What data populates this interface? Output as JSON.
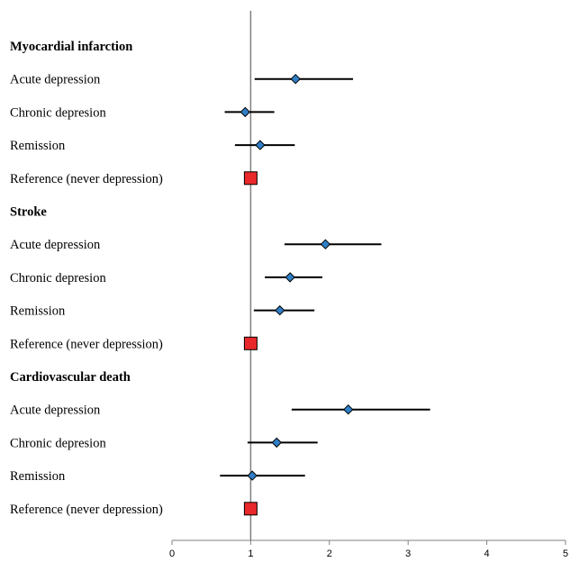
{
  "chart_data": {
    "type": "forest",
    "title": "",
    "xlabel": "",
    "ylabel": "",
    "xlim": [
      0,
      5
    ],
    "xticks": [
      0,
      1,
      2,
      3,
      4,
      5
    ],
    "reference_value": 1,
    "colors": {
      "point": "#2f7fc6",
      "reference": "#e8282a",
      "line": "#000000",
      "axis": "#808080"
    },
    "rows": [
      {
        "label": "Myocardial infarction",
        "kind": "group"
      },
      {
        "label": "Acute depression",
        "kind": "estimate",
        "estimate": 1.57,
        "ci": [
          1.05,
          2.3
        ]
      },
      {
        "label": "Chronic depresion",
        "kind": "estimate",
        "estimate": 0.93,
        "ci": [
          0.67,
          1.3
        ]
      },
      {
        "label": "Remission",
        "kind": "estimate",
        "estimate": 1.12,
        "ci": [
          0.8,
          1.56
        ]
      },
      {
        "label": "Reference (never depression)",
        "kind": "reference",
        "estimate": 1.0
      },
      {
        "label": "Stroke",
        "kind": "group"
      },
      {
        "label": "Acute depression",
        "kind": "estimate",
        "estimate": 1.95,
        "ci": [
          1.43,
          2.66
        ]
      },
      {
        "label": "Chronic depresion",
        "kind": "estimate",
        "estimate": 1.5,
        "ci": [
          1.18,
          1.91
        ]
      },
      {
        "label": "Remission",
        "kind": "estimate",
        "estimate": 1.37,
        "ci": [
          1.04,
          1.81
        ]
      },
      {
        "label": "Reference (never depression)",
        "kind": "reference",
        "estimate": 1.0
      },
      {
        "label": "Cardiovascular death",
        "kind": "group"
      },
      {
        "label": "Acute depression",
        "kind": "estimate",
        "estimate": 2.24,
        "ci": [
          1.52,
          3.28
        ]
      },
      {
        "label": "Chronic depresion",
        "kind": "estimate",
        "estimate": 1.33,
        "ci": [
          0.96,
          1.85
        ]
      },
      {
        "label": "Remission",
        "kind": "estimate",
        "estimate": 1.02,
        "ci": [
          0.61,
          1.69
        ]
      },
      {
        "label": "Reference (never depression)",
        "kind": "reference",
        "estimate": 1.0
      }
    ]
  }
}
